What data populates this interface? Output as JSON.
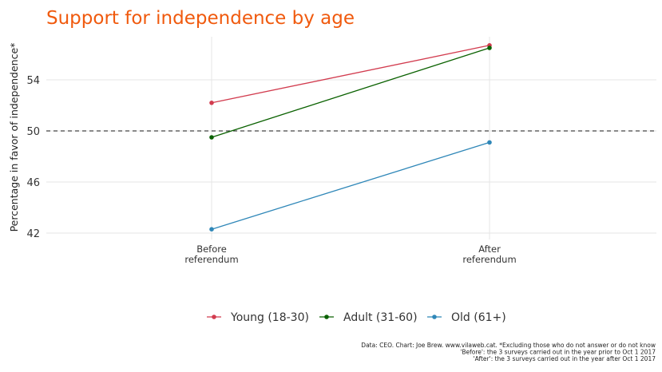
{
  "chart_data": {
    "type": "line",
    "title": "Support for independence by age",
    "ylabel": "Percentage in favor of independence*",
    "xlabel": "",
    "categories": [
      [
        "Before",
        "referendum"
      ],
      [
        "After",
        "referendum"
      ]
    ],
    "yticks": [
      42,
      46,
      50,
      54
    ],
    "ylim": [
      41.4,
      57.3
    ],
    "reference_line": {
      "y": 50,
      "style": "dashed"
    },
    "grid": true,
    "legend_position": "bottom",
    "series": [
      {
        "name": "Young (18-30)",
        "color": "#d23c4f",
        "values": [
          52.2,
          56.7
        ]
      },
      {
        "name": "Adult (31-60)",
        "color": "#0a6100",
        "values": [
          49.5,
          56.5
        ]
      },
      {
        "name": "Old (61+)",
        "color": "#2f87b8",
        "values": [
          42.3,
          49.1
        ]
      }
    ],
    "caption": [
      "Data: CEO. Chart: Joe Brew. www.vilaweb.cat. *Excluding those who do not answer or do not know",
      "'Before': the 3 surveys carried out in the year prior to Oct 1 2017",
      "'After': the 3 surveys carried out in the year after Oct 1 2017"
    ]
  }
}
